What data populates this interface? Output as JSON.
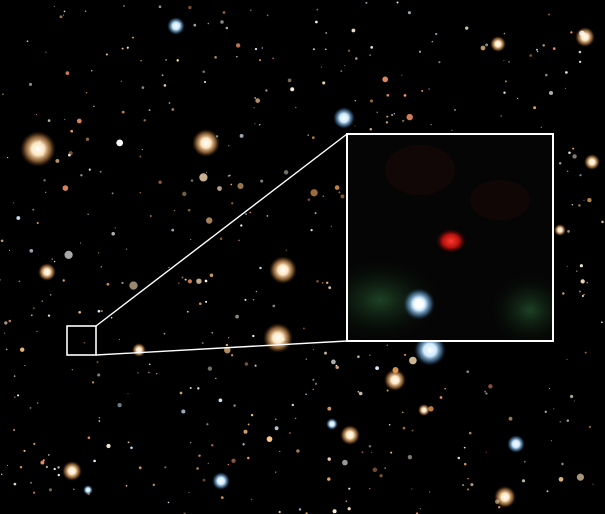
{
  "image": {
    "subject": "deep-field",
    "colors": {
      "background": "#000000",
      "inset_frame": "#ffffff",
      "target_galaxy": "#ff2a24",
      "warm_star": "#ffd9a6",
      "cool_star": "#bfe6ff"
    }
  }
}
